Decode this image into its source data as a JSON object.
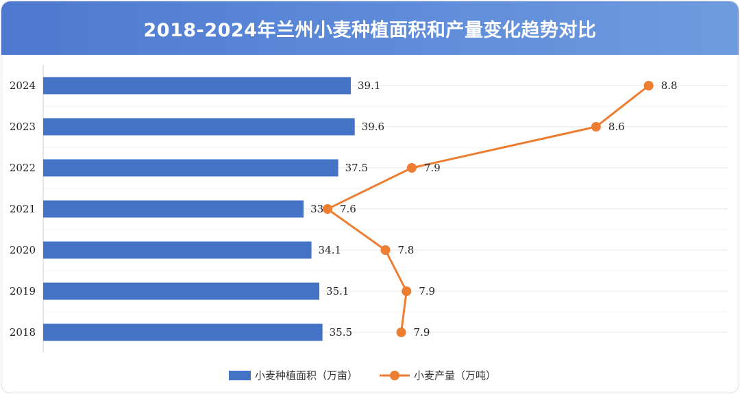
{
  "title": "2018-2024年兰州小麦种植面积和产量变化趋势对比",
  "chart_data": {
    "type": "bar+line",
    "orientation": "horizontal",
    "categories": [
      "2018",
      "2019",
      "2020",
      "2021",
      "2022",
      "2023",
      "2024"
    ],
    "series": [
      {
        "name": "小麦种植面积（万亩）",
        "type": "bar",
        "color": "#4472c4",
        "values": [
          35.5,
          35.1,
          34.1,
          33.1,
          37.5,
          39.6,
          39.1
        ],
        "labels": [
          "35.5",
          "35.1",
          "34.1",
          "33.1",
          "37.5",
          "39.6",
          "39.1"
        ]
      },
      {
        "name": "小麦产量（万吨）",
        "type": "line",
        "color": "#ed7d31",
        "values": [
          7.86,
          7.88,
          7.8,
          7.58,
          7.9,
          8.6,
          8.8
        ],
        "labels": [
          "7.9",
          "7.9",
          "7.8",
          "7.6",
          "7.9",
          "8.6",
          "8.8"
        ]
      }
    ],
    "bar_axis": {
      "min": 0,
      "max": 87
    },
    "line_axis": {
      "min": 6.5,
      "max": 9.1
    },
    "grid": true,
    "legend": "bottom-center"
  }
}
